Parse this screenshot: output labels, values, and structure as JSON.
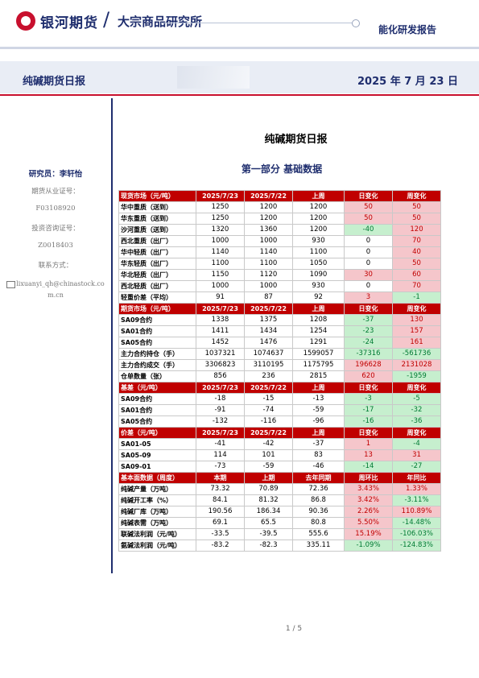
{
  "header": {
    "brand_cn": "银河期货",
    "slash": "/",
    "org": "大宗商品研究所",
    "category": "能化研发报告"
  },
  "band": {
    "title": "纯碱期货日报",
    "date": "2025 年 7 月 23 日"
  },
  "sidebar": {
    "researcher": "研究员：李轩怡",
    "cert_label": "期货从业证号：",
    "cert_no": "F03108920",
    "advisor_label": "投资咨询证号：",
    "advisor_no": "Z0018403",
    "contact_label": "联系方式：",
    "email": "lixuanyi_qh@chinastock.com.cn"
  },
  "main": {
    "title": "纯碱期货日报",
    "section": "第一部分   基础数据"
  },
  "table": [
    {
      "hdr": true,
      "cells": [
        "现货市场（元/吨）",
        "2025/7/23",
        "2025/7/22",
        "上周",
        "日变化",
        "周变化"
      ]
    },
    {
      "cells": [
        "华中重质（送到）",
        "1250",
        "1200",
        "1200",
        "50",
        "50"
      ],
      "dir": [
        "pos",
        "pos"
      ]
    },
    {
      "cells": [
        "华东重质（送到）",
        "1250",
        "1200",
        "1200",
        "50",
        "50"
      ],
      "dir": [
        "pos",
        "pos"
      ]
    },
    {
      "cells": [
        "沙河重质（送到）",
        "1320",
        "1360",
        "1200",
        "-40",
        "120"
      ],
      "dir": [
        "neg",
        "pos"
      ]
    },
    {
      "cells": [
        "西北重质（出厂）",
        "1000",
        "1000",
        "930",
        "0",
        "70"
      ],
      "dir": [
        "",
        "pos"
      ]
    },
    {
      "cells": [
        "华中轻质（出厂）",
        "1140",
        "1140",
        "1100",
        "0",
        "40"
      ],
      "dir": [
        "",
        "pos"
      ]
    },
    {
      "cells": [
        "华东轻质（出厂）",
        "1100",
        "1100",
        "1050",
        "0",
        "50"
      ],
      "dir": [
        "",
        "pos"
      ]
    },
    {
      "cells": [
        "华北轻质（出厂）",
        "1150",
        "1120",
        "1090",
        "30",
        "60"
      ],
      "dir": [
        "pos",
        "pos"
      ]
    },
    {
      "cells": [
        "西北轻质（出厂）",
        "1000",
        "1000",
        "930",
        "0",
        "70"
      ],
      "dir": [
        "",
        "pos"
      ]
    },
    {
      "cells": [
        "轻重价差（平均）",
        "91",
        "87",
        "92",
        "3",
        "-1"
      ],
      "dir": [
        "pos",
        "neg"
      ]
    },
    {
      "hdr": true,
      "cells": [
        "期货市场（元/吨）",
        "2025/7/23",
        "2025/7/22",
        "上周",
        "日变化",
        "周变化"
      ]
    },
    {
      "cells": [
        "SA09合约",
        "1338",
        "1375",
        "1208",
        "-37",
        "130"
      ],
      "dir": [
        "neg",
        "pos"
      ]
    },
    {
      "cells": [
        "SA01合约",
        "1411",
        "1434",
        "1254",
        "-23",
        "157"
      ],
      "dir": [
        "neg",
        "pos"
      ]
    },
    {
      "cells": [
        "SA05合约",
        "1452",
        "1476",
        "1291",
        "-24",
        "161"
      ],
      "dir": [
        "neg",
        "pos"
      ]
    },
    {
      "cells": [
        "主力合约持仓（手）",
        "1037321",
        "1074637",
        "1599057",
        "-37316",
        "-561736"
      ],
      "dir": [
        "neg",
        "neg"
      ]
    },
    {
      "cells": [
        "主力合约成交（手）",
        "3306823",
        "3110195",
        "1175795",
        "196628",
        "2131028"
      ],
      "dir": [
        "pos",
        "pos"
      ]
    },
    {
      "cells": [
        "仓单数量（张）",
        "856",
        "236",
        "2815",
        "620",
        "-1959"
      ],
      "dir": [
        "pos",
        "neg"
      ]
    },
    {
      "hdr": true,
      "cells": [
        "基差（元/吨）",
        "2025/7/23",
        "2025/7/22",
        "上周",
        "日变化",
        "周变化"
      ]
    },
    {
      "cells": [
        "SA09合约",
        "-18",
        "-15",
        "-13",
        "-3",
        "-5"
      ],
      "dir": [
        "neg",
        "neg"
      ]
    },
    {
      "cells": [
        "SA01合约",
        "-91",
        "-74",
        "-59",
        "-17",
        "-32"
      ],
      "dir": [
        "neg",
        "neg"
      ]
    },
    {
      "cells": [
        "SA05合约",
        "-132",
        "-116",
        "-96",
        "-16",
        "-36"
      ],
      "dir": [
        "neg",
        "neg"
      ]
    },
    {
      "hdr": true,
      "cells": [
        "价差（元/吨）",
        "2025/7/23",
        "2025/7/22",
        "上周",
        "日变化",
        "周变化"
      ]
    },
    {
      "cells": [
        "SA01-05",
        "-41",
        "-42",
        "-37",
        "1",
        "-4"
      ],
      "dir": [
        "pos",
        "neg"
      ]
    },
    {
      "cells": [
        "SA05-09",
        "114",
        "101",
        "83",
        "13",
        "31"
      ],
      "dir": [
        "pos",
        "pos"
      ]
    },
    {
      "cells": [
        "SA09-01",
        "-73",
        "-59",
        "-46",
        "-14",
        "-27"
      ],
      "dir": [
        "neg",
        "neg"
      ]
    },
    {
      "hdr": true,
      "cells": [
        "基本面数据（周度）",
        "本期",
        "上期",
        "去年同期",
        "周环比",
        "年同比"
      ]
    },
    {
      "cells": [
        "纯碱产量（万吨）",
        "73.32",
        "70.89",
        "72.36",
        "3.43%",
        "1.33%"
      ],
      "dir": [
        "pos",
        "pos"
      ]
    },
    {
      "cells": [
        "纯碱开工率（%）",
        "84.1",
        "81.32",
        "86.8",
        "3.42%",
        "-3.11%"
      ],
      "dir": [
        "pos",
        "neg"
      ]
    },
    {
      "cells": [
        "纯碱厂库（万吨）",
        "190.56",
        "186.34",
        "90.36",
        "2.26%",
        "110.89%"
      ],
      "dir": [
        "pos",
        "pos"
      ]
    },
    {
      "cells": [
        "纯碱表需（万吨）",
        "69.1",
        "65.5",
        "80.8",
        "5.50%",
        "-14.48%"
      ],
      "dir": [
        "pos",
        "neg"
      ]
    },
    {
      "cells": [
        "联碱法利润（元/吨）",
        "-33.5",
        "-39.5",
        "555.6",
        "15.19%",
        "-106.03%"
      ],
      "dir": [
        "pos",
        "neg"
      ]
    },
    {
      "cells": [
        "氨碱法利润（元/吨）",
        "-83.2",
        "-82.3",
        "335.11",
        "-1.09%",
        "-124.83%"
      ],
      "dir": [
        "neg",
        "neg"
      ]
    }
  ],
  "footer": {
    "page": "1 / 5"
  },
  "colors": {
    "brand_red": "#c00000",
    "navy": "#1f2e6e",
    "pos_bg": "#f5c6cb",
    "neg_bg": "#c6efce"
  }
}
